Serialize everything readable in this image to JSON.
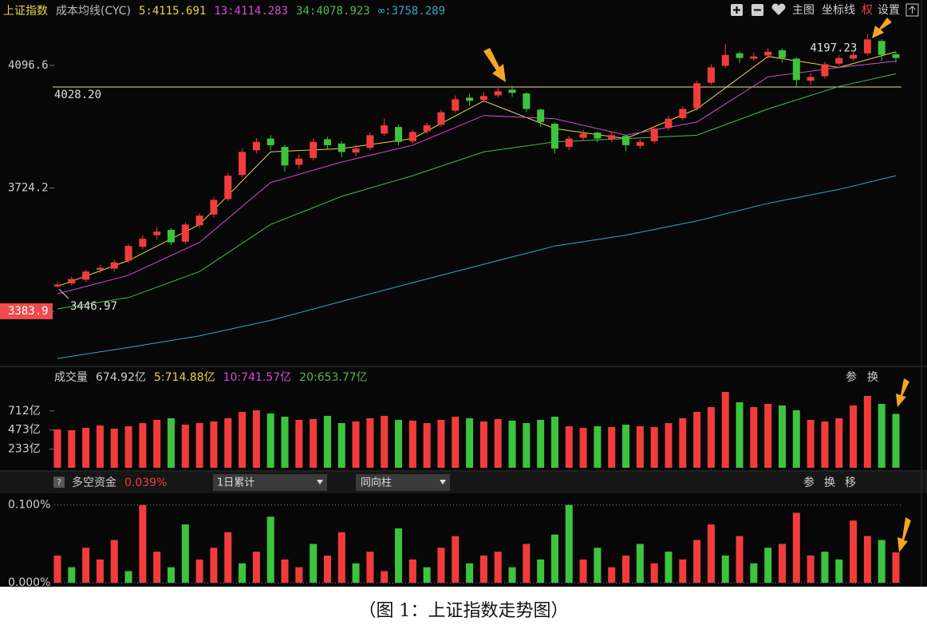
{
  "toolbar": {
    "buttons": [
      "主图",
      "坐标线",
      "权",
      "设置"
    ]
  },
  "chart_data": [
    {
      "type": "candlestick",
      "title": "上证指数",
      "subtitle": "成本均线(CYC)",
      "log_scale": true,
      "ylim": [
        3244,
        4310
      ],
      "yticks": [
        4096.6,
        3724.2,
        3383.9
      ],
      "up_color": "#f23c3c",
      "down_color": "#3cc43c",
      "open": [
        3450,
        3458,
        3468,
        3495,
        3498,
        3520,
        3558,
        3590,
        3605,
        3572,
        3618,
        3648,
        3692,
        3762,
        3835,
        3870,
        3845,
        3792,
        3812,
        3868,
        3855,
        3828,
        3842,
        3885,
        3905,
        3862,
        3892,
        3912,
        3955,
        3995,
        3988,
        4002,
        4020,
        4008,
        3958,
        3915,
        3845,
        3872,
        3888,
        3868,
        3878,
        3848,
        3862,
        3902,
        3932,
        3962,
        4042,
        4095,
        4135,
        4118,
        4128,
        4145,
        4118,
        4048,
        4062,
        4102,
        4118,
        4135,
        4175,
        4132
      ],
      "high": [
        3462,
        3476,
        3495,
        3508,
        3522,
        3566,
        3590,
        3612,
        3610,
        3626,
        3652,
        3698,
        3768,
        3840,
        3872,
        3880,
        3852,
        3822,
        3870,
        3875,
        3862,
        3852,
        3888,
        3930,
        3912,
        3898,
        3918,
        3958,
        4002,
        4008,
        4012,
        4030,
        4032,
        4012,
        3962,
        3918,
        3878,
        3895,
        3892,
        3888,
        3882,
        3868,
        3908,
        3940,
        3968,
        4048,
        4100,
        4165,
        4142,
        4138,
        4152,
        4150,
        4122,
        4072,
        4108,
        4130,
        4138,
        4197.23,
        4180,
        4140
      ],
      "low": [
        3446.97,
        3452,
        3462,
        3486,
        3490,
        3514,
        3550,
        3578,
        3562,
        3566,
        3610,
        3640,
        3686,
        3755,
        3825,
        3835,
        3772,
        3780,
        3805,
        3838,
        3815,
        3818,
        3835,
        3878,
        3850,
        3855,
        3884,
        3906,
        3948,
        3970,
        3980,
        3995,
        3998,
        3950,
        3905,
        3825,
        3835,
        3862,
        3858,
        3860,
        3832,
        3840,
        3855,
        3895,
        3925,
        3955,
        4035,
        4088,
        4105,
        4110,
        4118,
        4105,
        4030,
        4035,
        4055,
        4095,
        4110,
        4128,
        4112,
        4105
      ],
      "close": [
        3455,
        3470,
        3490,
        3500,
        3515,
        3560,
        3580,
        3600,
        3570,
        3620,
        3645,
        3690,
        3760,
        3830,
        3860,
        3850,
        3790,
        3810,
        3860,
        3850,
        3830,
        3840,
        3880,
        3910,
        3860,
        3890,
        3910,
        3950,
        3990,
        3985,
        4000,
        4015,
        4010,
        3960,
        3920,
        3840,
        3870,
        3885,
        3870,
        3880,
        3850,
        3860,
        3900,
        3930,
        3960,
        4040,
        4090,
        4130,
        4120,
        4125,
        4140,
        4120,
        4050,
        4060,
        4100,
        4120,
        4130,
        4180,
        4130,
        4120
      ],
      "series": [
        {
          "name": "5:4115.691",
          "color": "#e8d44d",
          "x": [
            0,
            5,
            10,
            15,
            20,
            25,
            30,
            35,
            40,
            45,
            50,
            55,
            59
          ],
          "values": [
            3450,
            3520,
            3620,
            3830,
            3840,
            3870,
            3985,
            3900,
            3870,
            3960,
            4125,
            4090,
            4140
          ]
        },
        {
          "name": "13:4114.283",
          "color": "#d54bd5",
          "x": [
            0,
            5,
            10,
            15,
            20,
            25,
            30,
            35,
            40,
            45,
            50,
            55,
            59
          ],
          "values": [
            3430,
            3480,
            3570,
            3740,
            3800,
            3850,
            3940,
            3930,
            3880,
            3920,
            4060,
            4090,
            4110
          ]
        },
        {
          "name": "34:4078.923",
          "color": "#4fb84f",
          "x": [
            0,
            5,
            10,
            15,
            20,
            25,
            30,
            35,
            40,
            45,
            50,
            55,
            59
          ],
          "values": [
            3390,
            3420,
            3490,
            3620,
            3700,
            3760,
            3830,
            3860,
            3870,
            3880,
            3960,
            4030,
            4070
          ]
        },
        {
          "name": "∞:3758.289",
          "color": "#3aa6c4",
          "x": [
            0,
            5,
            10,
            15,
            20,
            25,
            30,
            35,
            40,
            45,
            50,
            55,
            59
          ],
          "values": [
            3262,
            3290,
            3320,
            3360,
            3410,
            3460,
            3510,
            3560,
            3590,
            3630,
            3680,
            3720,
            3760
          ]
        }
      ],
      "hline": {
        "value": 4028.2,
        "label": "4028.20",
        "color": "#e6e08a"
      },
      "annotations": [
        4197.23,
        3446.97
      ]
    },
    {
      "type": "bar",
      "title": "成交量",
      "value_label": "674.92亿",
      "legend": [
        {
          "name": "5:714.88亿",
          "color": "#e8d44d"
        },
        {
          "name": "10:741.57亿",
          "color": "#d54bd5"
        },
        {
          "name": "20:653.77亿",
          "color": "#4fb84f"
        }
      ],
      "buttons": [
        "参",
        "换"
      ],
      "ylim": [
        0,
        960
      ],
      "yticks": [
        {
          "value": 712,
          "label": "712亿"
        },
        {
          "value": 473,
          "label": "473亿"
        },
        {
          "value": 233,
          "label": "233亿"
        }
      ],
      "values": [
        480,
        470,
        500,
        530,
        490,
        520,
        560,
        600,
        620,
        540,
        560,
        580,
        620,
        700,
        720,
        680,
        640,
        600,
        610,
        650,
        560,
        580,
        620,
        650,
        600,
        590,
        560,
        600,
        640,
        620,
        580,
        610,
        590,
        560,
        600,
        640,
        520,
        500,
        520,
        510,
        540,
        520,
        510,
        560,
        620,
        700,
        760,
        950,
        820,
        760,
        800,
        780,
        720,
        600,
        580,
        620,
        780,
        900,
        800,
        674.92
      ]
    },
    {
      "type": "bar",
      "title": "多空资金",
      "value_label": "0.039%",
      "controls": [
        "1日累计",
        "同向柱"
      ],
      "buttons": [
        "参",
        "换",
        "移"
      ],
      "ylim": [
        -0.003,
        0.113
      ],
      "yticks": [
        {
          "value": 0.1,
          "label": "0.100%"
        },
        {
          "value": 0,
          "label": "0.000%"
        }
      ],
      "grid": true,
      "values": [
        0.035,
        0.02,
        0.045,
        0.03,
        0.055,
        0.015,
        0.1,
        0.04,
        0.02,
        0.075,
        0.03,
        0.045,
        0.065,
        0.025,
        0.04,
        0.085,
        0.03,
        0.02,
        0.05,
        0.035,
        0.065,
        0.025,
        0.04,
        0.015,
        0.07,
        0.03,
        0.02,
        0.045,
        0.06,
        0.025,
        0.035,
        0.04,
        0.02,
        0.05,
        0.03,
        0.062,
        0.1,
        0.03,
        0.045,
        0.02,
        0.035,
        0.05,
        0.025,
        0.04,
        0.03,
        0.055,
        0.075,
        0.035,
        0.06,
        0.025,
        0.045,
        0.05,
        0.09,
        0.035,
        0.04,
        0.03,
        0.08,
        0.06,
        0.055,
        0.039
      ],
      "colors": [
        "#f23c3c",
        "#3cc43c",
        "#f23c3c",
        "#f23c3c",
        "#f23c3c",
        "#3cc43c",
        "#f23c3c",
        "#f23c3c",
        "#3cc43c",
        "#3cc43c",
        "#f23c3c",
        "#f23c3c",
        "#f23c3c",
        "#3cc43c",
        "#f23c3c",
        "#3cc43c",
        "#f23c3c",
        "#f23c3c",
        "#3cc43c",
        "#f23c3c",
        "#f23c3c",
        "#3cc43c",
        "#f23c3c",
        "#f23c3c",
        "#3cc43c",
        "#f23c3c",
        "#3cc43c",
        "#f23c3c",
        "#f23c3c",
        "#3cc43c",
        "#f23c3c",
        "#f23c3c",
        "#3cc43c",
        "#f23c3c",
        "#3cc43c",
        "#3cc43c",
        "#3cc43c",
        "#f23c3c",
        "#3cc43c",
        "#f23c3c",
        "#f23c3c",
        "#3cc43c",
        "#f23c3c",
        "#3cc43c",
        "#f23c3c",
        "#f23c3c",
        "#f23c3c",
        "#3cc43c",
        "#f23c3c",
        "#3cc43c",
        "#3cc43c",
        "#f23c3c",
        "#f23c3c",
        "#f23c3c",
        "#3cc43c",
        "#3cc43c",
        "#f23c3c",
        "#f23c3c",
        "#3cc43c",
        "#f23c3c"
      ]
    }
  ],
  "caption": "（图 1：上证指数走势图）"
}
